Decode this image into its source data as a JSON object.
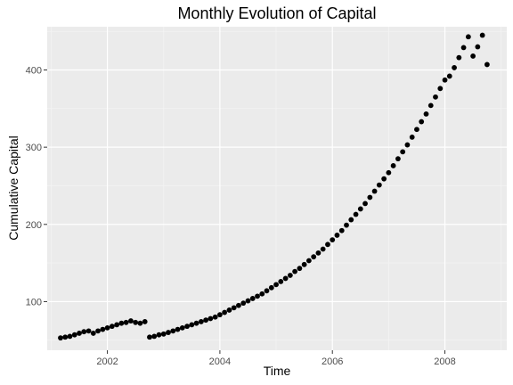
{
  "chart_data": {
    "type": "scatter",
    "title": "Monthly Evolution of Capital",
    "xlabel": "Time",
    "ylabel": "Cumulative Capital",
    "xlim": [
      2000.93,
      2009.1
    ],
    "ylim": [
      37,
      456
    ],
    "x_ticks": [
      2002,
      2004,
      2006,
      2008
    ],
    "x_tick_labels": [
      "2002",
      "2004",
      "2006",
      "2008"
    ],
    "x_minor_ticks": [
      2001,
      2003,
      2005,
      2007,
      2009
    ],
    "y_ticks": [
      100,
      200,
      300,
      400
    ],
    "y_tick_labels": [
      "100",
      "200",
      "300",
      "400"
    ],
    "y_minor_ticks": [
      50,
      150,
      250,
      350,
      450
    ],
    "grid": true,
    "point_color": "#000000",
    "panel_color": "#ebebeb",
    "series": [
      {
        "x": [
          2001.167,
          2001.25,
          2001.333,
          2001.417,
          2001.5,
          2001.583,
          2001.667,
          2001.75,
          2001.833,
          2001.917,
          2002.0,
          2002.083,
          2002.167,
          2002.25,
          2002.333,
          2002.417,
          2002.5,
          2002.583,
          2002.667
        ],
        "y": [
          53,
          54,
          55,
          57,
          59,
          61,
          62,
          59,
          62,
          64,
          66,
          68,
          70,
          72,
          73,
          75,
          73,
          72,
          74
        ]
      },
      {
        "x": [
          2002.75,
          2002.833,
          2002.917,
          2003.0,
          2003.083,
          2003.167,
          2003.25,
          2003.333,
          2003.417,
          2003.5,
          2003.583,
          2003.667,
          2003.75,
          2003.833,
          2003.917,
          2004.0,
          2004.083,
          2004.167,
          2004.25,
          2004.333,
          2004.417,
          2004.5,
          2004.583,
          2004.667,
          2004.75,
          2004.833,
          2004.917,
          2005.0,
          2005.083,
          2005.167,
          2005.25,
          2005.333,
          2005.417,
          2005.5,
          2005.583,
          2005.667,
          2005.75,
          2005.833,
          2005.917,
          2006.0,
          2006.083,
          2006.167,
          2006.25,
          2006.333,
          2006.417,
          2006.5,
          2006.583,
          2006.667,
          2006.75,
          2006.833,
          2006.917,
          2007.0,
          2007.083,
          2007.167,
          2007.25,
          2007.333,
          2007.417,
          2007.5,
          2007.583,
          2007.667,
          2007.75,
          2007.833,
          2007.917,
          2008.0,
          2008.083,
          2008.167,
          2008.25,
          2008.333,
          2008.417,
          2008.5,
          2008.583,
          2008.667,
          2008.75
        ],
        "y": [
          54,
          55,
          57,
          58,
          60,
          62,
          64,
          66,
          68,
          70,
          72,
          74,
          76,
          78,
          80,
          83,
          86,
          89,
          92,
          95,
          98,
          101,
          104,
          107,
          110,
          114,
          118,
          122,
          126,
          130,
          134,
          139,
          143,
          148,
          153,
          158,
          163,
          168,
          174,
          180,
          186,
          192,
          199,
          206,
          213,
          220,
          227,
          235,
          243,
          251,
          259,
          267,
          276,
          285,
          294,
          303,
          313,
          323,
          333,
          343,
          354,
          365,
          376,
          387,
          392,
          403,
          416,
          429,
          443,
          418,
          430,
          445,
          407
        ]
      }
    ]
  }
}
